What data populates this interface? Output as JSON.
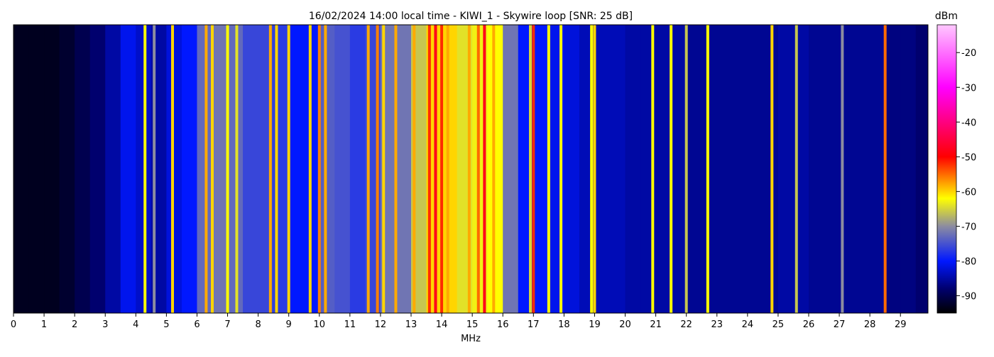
{
  "chart_data": {
    "type": "spectrogram",
    "title": "16/02/2024 14:00 local time - KIWI_1 - Skywire loop [SNR: 25 dB]",
    "xlabel": "MHz",
    "xlim": [
      0,
      29.9
    ],
    "xticks": [
      0,
      1,
      2,
      3,
      4,
      5,
      6,
      7,
      8,
      9,
      10,
      11,
      12,
      13,
      14,
      15,
      16,
      17,
      18,
      19,
      20,
      21,
      22,
      23,
      24,
      25,
      26,
      27,
      28,
      29
    ],
    "x": [
      0,
      0.5,
      1,
      1.5,
      2,
      2.5,
      3,
      3.5,
      4,
      4.5,
      5,
      5.5,
      6,
      6.5,
      7,
      7.5,
      8,
      8.5,
      9,
      9.5,
      10,
      10.5,
      11,
      11.5,
      12,
      12.5,
      13,
      13.5,
      14,
      14.5,
      15,
      15.5,
      16,
      16.5,
      17,
      17.5,
      18,
      18.5,
      19,
      19.5,
      20,
      20.5,
      21,
      21.5,
      22,
      22.5,
      23,
      23.5,
      24,
      24.5,
      25,
      25.5,
      26,
      26.5,
      27,
      27.5,
      28,
      28.5,
      29,
      29.5
    ],
    "values": [
      -93,
      -93,
      -93,
      -92,
      -90,
      -88,
      -85,
      -81,
      -83,
      -85,
      -82,
      -80,
      -73,
      -72,
      -73,
      -76,
      -76,
      -77,
      -80,
      -80,
      -74,
      -75,
      -77,
      -76,
      -72,
      -72,
      -66,
      -60,
      -60,
      -64,
      -63,
      -62,
      -72,
      -80,
      -80,
      -81,
      -82,
      -84,
      -84,
      -84,
      -85,
      -85,
      -85,
      -85,
      -86,
      -86,
      -86,
      -86,
      -86,
      -86,
      -85,
      -85,
      -86,
      -86,
      -86,
      -86,
      -86,
      -87,
      -87,
      -88
    ],
    "signals": {
      "x": [
        4.3,
        4.6,
        5.2,
        6.3,
        6.5,
        7.0,
        7.3,
        8.4,
        8.6,
        9.0,
        9.7,
        10.0,
        10.2,
        11.6,
        11.9,
        12.1,
        12.5,
        13.1,
        13.6,
        13.8,
        14.0,
        14.2,
        14.9,
        15.2,
        15.4,
        15.7,
        16.9,
        17.0,
        17.5,
        17.9,
        18.9,
        19.0,
        20.9,
        21.5,
        22.0,
        22.7,
        24.8,
        25.6,
        27.1,
        28.5
      ],
      "values": [
        -62,
        -70,
        -60,
        -58,
        -60,
        -62,
        -64,
        -58,
        -60,
        -60,
        -60,
        -56,
        -58,
        -58,
        -56,
        -60,
        -58,
        -58,
        -52,
        -48,
        -52,
        -58,
        -58,
        -55,
        -48,
        -58,
        -65,
        -52,
        -62,
        -62,
        -62,
        -60,
        -62,
        -62,
        -66,
        -62,
        -60,
        -66,
        -70,
        -55
      ]
    },
    "colorbar": {
      "label": "dBm",
      "clim": [
        -95,
        -12
      ],
      "ticks": [
        -20,
        -30,
        -40,
        -50,
        -60,
        -70,
        -80,
        -90
      ]
    },
    "colormap": [
      {
        "value": -95,
        "color": "#000000"
      },
      {
        "value": -88,
        "color": "#00006e"
      },
      {
        "value": -80,
        "color": "#0018ff"
      },
      {
        "value": -70,
        "color": "#8c8ca0"
      },
      {
        "value": -62,
        "color": "#ffff00"
      },
      {
        "value": -50,
        "color": "#ff0000"
      },
      {
        "value": -30,
        "color": "#ff00ff"
      },
      {
        "value": -12,
        "color": "#ffc8ff"
      }
    ]
  }
}
